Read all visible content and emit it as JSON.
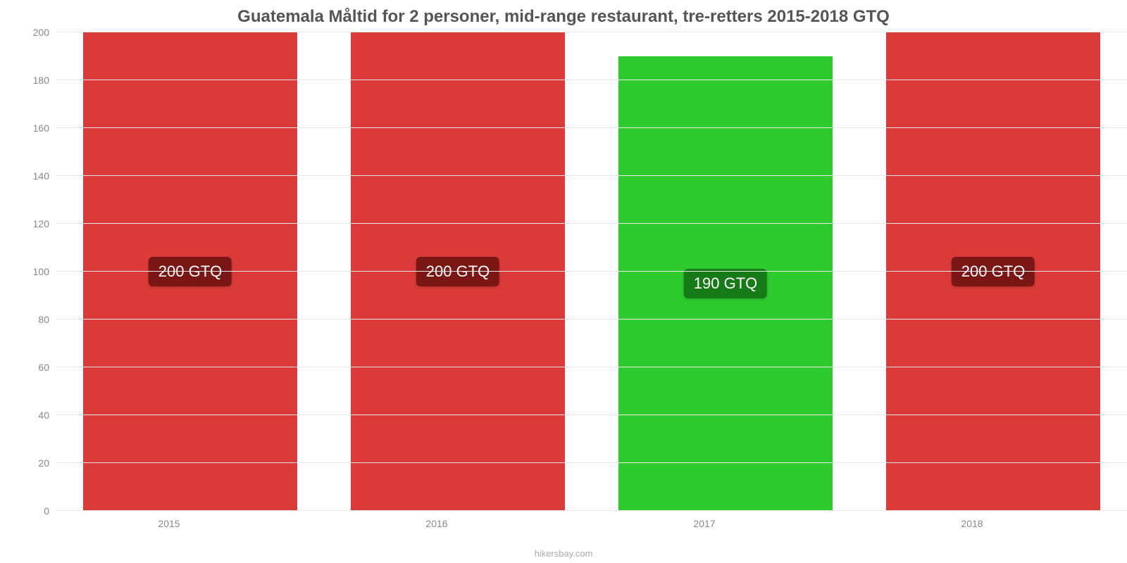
{
  "chart": {
    "type": "bar",
    "title": "Guatemala Måltid for 2 personer, mid-range restaurant, tre-retters 2015-2018 GTQ",
    "title_color": "#555555",
    "title_fontsize": 24,
    "categories": [
      "2015",
      "2016",
      "2017",
      "2018"
    ],
    "values": [
      200,
      200,
      190,
      200
    ],
    "value_labels": [
      "200 GTQ",
      "200 GTQ",
      "190 GTQ",
      "200 GTQ"
    ],
    "bar_colors": [
      "#db3b38",
      "#db3b38",
      "#2dcb2d",
      "#db3b38"
    ],
    "badge_bg_colors": [
      "#7a1715",
      "#7a1715",
      "#167a16",
      "#7a1715"
    ],
    "badge_text_color": "#ffffff",
    "badge_fontsize": 22,
    "bar_width_pct": 80,
    "ylim": [
      0,
      200
    ],
    "ytick_step": 20,
    "yticks": [
      0,
      20,
      40,
      60,
      80,
      100,
      120,
      140,
      160,
      180,
      200
    ],
    "grid_color": "#e8e8e8",
    "axis_line_color": "#c8c8c8",
    "tick_label_color": "#888888",
    "tick_label_fontsize": 14,
    "background_color": "#ffffff",
    "credit": "hikersbay.com",
    "credit_color": "#aaaaaa",
    "credit_fontsize": 13
  }
}
